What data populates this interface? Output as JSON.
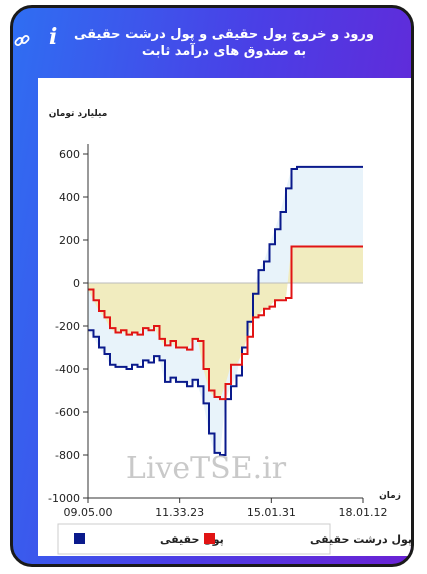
{
  "header": {
    "title": "ورود و خروج پول حقیقی و پول درشت حقیقی به صندوق های درآمد ثابت",
    "info_icon": "i",
    "link_icon": "link-icon"
  },
  "chart_data": {
    "type": "area",
    "ylabel": "میلیارد تومان",
    "xlabel": "زمان",
    "ylim": [
      -1000,
      600
    ],
    "yticks": [
      600,
      400,
      200,
      0,
      -200,
      -400,
      -600,
      -800,
      -1000
    ],
    "xticks": [
      "09.05.00",
      "11.33.23",
      "15.01.31",
      "18.01.12"
    ],
    "x_range": [
      0,
      1
    ],
    "watermark": "LiveTSE.ir",
    "colors": {
      "pool_haghighi": "#0a1a8c",
      "pool_dorosht": "#e11414",
      "fill_blue": "#e8f3fa",
      "fill_yellow": "#f1ecbf"
    },
    "legend": [
      {
        "name": "پول حقیقی",
        "color": "#0a1a8c"
      },
      {
        "name": "پول درشت حقیقی",
        "color": "#e11414"
      }
    ],
    "series": [
      {
        "name": "پول حقیقی",
        "x": [
          0.0,
          0.02,
          0.04,
          0.06,
          0.08,
          0.1,
          0.12,
          0.14,
          0.16,
          0.18,
          0.2,
          0.22,
          0.24,
          0.26,
          0.28,
          0.3,
          0.32,
          0.34,
          0.36,
          0.38,
          0.4,
          0.42,
          0.44,
          0.46,
          0.48,
          0.5,
          0.52,
          0.54,
          0.56,
          0.58,
          0.6,
          0.62,
          0.64,
          0.66,
          0.68,
          0.7,
          0.72,
          0.74,
          0.76,
          0.78,
          0.8,
          0.82,
          0.84,
          0.86,
          0.88,
          0.9,
          0.92,
          0.94,
          0.96,
          0.98,
          1.0
        ],
        "values": [
          -220,
          -250,
          -300,
          -330,
          -380,
          -390,
          -390,
          -400,
          -380,
          -390,
          -360,
          -370,
          -340,
          -360,
          -460,
          -440,
          -460,
          -460,
          -480,
          -450,
          -480,
          -560,
          -700,
          -790,
          -800,
          -540,
          -480,
          -430,
          -300,
          -180,
          -50,
          60,
          100,
          180,
          250,
          330,
          440,
          530,
          540,
          540,
          540,
          540,
          540,
          540,
          540,
          540,
          540,
          540,
          540,
          540,
          540
        ]
      },
      {
        "name": "پول درشت حقیقی",
        "x": [
          0.0,
          0.02,
          0.04,
          0.06,
          0.08,
          0.1,
          0.12,
          0.14,
          0.16,
          0.18,
          0.2,
          0.22,
          0.24,
          0.26,
          0.28,
          0.3,
          0.32,
          0.34,
          0.36,
          0.38,
          0.4,
          0.42,
          0.44,
          0.46,
          0.48,
          0.5,
          0.52,
          0.54,
          0.56,
          0.58,
          0.6,
          0.62,
          0.64,
          0.66,
          0.68,
          0.7,
          0.72,
          0.74,
          0.76,
          0.78,
          0.8,
          0.82,
          0.84,
          0.86,
          0.88,
          0.9,
          0.92,
          0.94,
          0.96,
          0.98,
          1.0
        ],
        "values": [
          -30,
          -80,
          -130,
          -160,
          -210,
          -230,
          -220,
          -240,
          -230,
          -240,
          -210,
          -220,
          -200,
          -260,
          -290,
          -270,
          -300,
          -300,
          -310,
          -260,
          -270,
          -400,
          -500,
          -530,
          -540,
          -470,
          -380,
          -380,
          -330,
          -250,
          -160,
          -150,
          -120,
          -110,
          -80,
          -80,
          -70,
          170,
          170,
          170,
          170,
          170,
          170,
          170,
          170,
          170,
          170,
          170,
          170,
          170,
          170
        ]
      }
    ]
  }
}
